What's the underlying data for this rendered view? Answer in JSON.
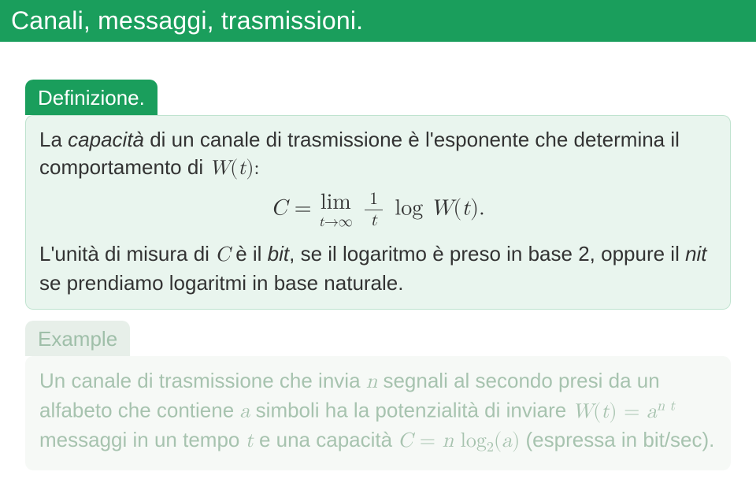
{
  "colors": {
    "titlebar_bg": "#1a9e5c",
    "title_text": "#ffffff",
    "def_tab_bg": "#1a9e5c",
    "def_tab_text": "#ffffff",
    "def_body_bg": "#e9f5ee",
    "def_body_text": "#333333",
    "def_border_glow": "#bfe3cf",
    "ex_tab_bg": "#e7efe9",
    "ex_tab_text": "#9fbfa9",
    "ex_body_bg": "#f6f9f6",
    "ex_body_text": "#a7c3af"
  },
  "title": "Canali, messaggi, trasmissioni.",
  "definition": {
    "label": "Definizione.",
    "p1a": "La ",
    "p1b": "capacità",
    "p1c": " di un canale di trasmissione è l'esponente che determina il comportamento di ",
    "p1d": "W",
    "p1e": "(",
    "p1f": "t",
    "p1g": "):",
    "eq": {
      "C": "C",
      "eq": " = ",
      "lim": "lim",
      "limsub_a": "t",
      "limsub_b": "→∞",
      "frac_num": "1",
      "frac_den": "t",
      "log": " log ",
      "W": "W",
      "lp": "(",
      "tt": "t",
      "rp": ").",
      "space": " "
    },
    "p2a": "L'unità di misura di ",
    "p2b": "C",
    "p2c": " è il ",
    "p2d": "bit",
    "p2e": ", se il logaritmo è preso in base 2, oppure il ",
    "p2f": "nit",
    "p2g": " se prendiamo logaritmi in base naturale."
  },
  "example": {
    "label": "Example",
    "t1": "Un canale di trasmissione che invia ",
    "t2": "n",
    "t3": " segnali al secondo presi da un alfabeto che contiene ",
    "t4": "a",
    "t5": " simboli ha la potenzialità di inviare ",
    "t6a": "W",
    "t6b": "(",
    "t6c": "t",
    "t6d": ") = ",
    "t6e": "a",
    "t6f": "n t",
    "t7": " messaggi in un tempo ",
    "t8": "t",
    "t9": " e una capacità ",
    "t10a": "C",
    "t10b": " = ",
    "t10c": "n",
    "t10d": " log",
    "t10e": "2",
    "t10f": "(",
    "t10g": "a",
    "t10h": ")",
    "t11": " (espressa in bit/sec)."
  }
}
